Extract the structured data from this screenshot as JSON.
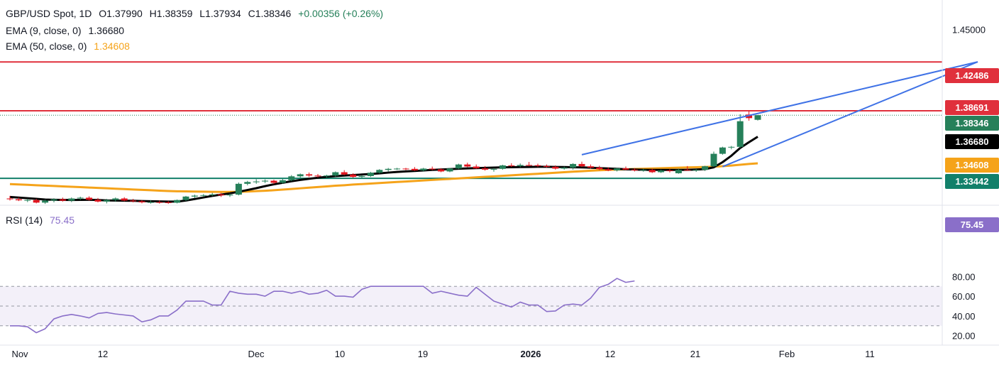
{
  "header": {
    "symbol": "GBP/USD Spot, 1D",
    "open": "O1.37990",
    "high": "H1.38359",
    "low": "L1.37934",
    "close": "C1.38346",
    "change": "+0.00356 (+0.26%)",
    "ema9_label": "EMA (9, close, 0)",
    "ema9_value": "1.36680",
    "ema50_label": "EMA (50, close, 0)",
    "ema50_value": "1.34608",
    "rsi_label": "RSI (14)",
    "rsi_value": "75.45"
  },
  "colors": {
    "up": "#26805a",
    "down": "#e0141e",
    "ema9": "#000000",
    "ema50": "#f5a31a",
    "rsi": "#8a6fc9",
    "resistance": "#e0303c",
    "support": "#12806a",
    "channel": "#3f72e6"
  },
  "price_tags": {
    "r1": "1.42486",
    "r2": "1.38691",
    "last": "1.38346",
    "ema9": "1.36680",
    "ema50": "1.34608",
    "support": "1.33442",
    "rsi": "75.45"
  },
  "chart_data": [
    {
      "type": "candlestick",
      "title": "GBP/USD Spot, 1D",
      "x_ticks": [
        "Nov",
        "12",
        "Dec",
        "10",
        "19",
        "2026",
        "12",
        "21",
        "Feb",
        "11"
      ],
      "y_ticks": [
        1.45
      ],
      "y_range": [
        1.31,
        1.455
      ],
      "horizontal_levels": [
        {
          "value": 1.42486,
          "label": "1.42486",
          "role": "resistance"
        },
        {
          "value": 1.38691,
          "label": "1.38691",
          "role": "resistance"
        },
        {
          "value": 1.33442,
          "label": "1.33442",
          "role": "support"
        }
      ],
      "last_close": 1.38346,
      "candles": [
        [
          1.3188,
          1.3208,
          1.3172,
          1.3182
        ],
        [
          1.3182,
          1.3195,
          1.3168,
          1.3174
        ],
        [
          1.3174,
          1.3186,
          1.316,
          1.3176
        ],
        [
          1.3176,
          1.3185,
          1.315,
          1.3156
        ],
        [
          1.3156,
          1.318,
          1.3146,
          1.3172
        ],
        [
          1.3172,
          1.319,
          1.3158,
          1.3182
        ],
        [
          1.3182,
          1.3195,
          1.3164,
          1.3171
        ],
        [
          1.3171,
          1.3196,
          1.316,
          1.3188
        ],
        [
          1.3188,
          1.3202,
          1.3176,
          1.3194
        ],
        [
          1.3194,
          1.3205,
          1.3172,
          1.3178
        ],
        [
          1.3178,
          1.3192,
          1.3158,
          1.3164
        ],
        [
          1.3164,
          1.3185,
          1.315,
          1.3176
        ],
        [
          1.3176,
          1.3196,
          1.3162,
          1.3188
        ],
        [
          1.3188,
          1.3198,
          1.3166,
          1.3172
        ],
        [
          1.3172,
          1.3185,
          1.3158,
          1.3166
        ],
        [
          1.3166,
          1.3175,
          1.315,
          1.3158
        ],
        [
          1.316,
          1.3175,
          1.3148,
          1.316
        ],
        [
          1.316,
          1.3172,
          1.3148,
          1.3158
        ],
        [
          1.3158,
          1.3168,
          1.3146,
          1.3155
        ],
        [
          1.3155,
          1.318,
          1.315,
          1.3176
        ],
        [
          1.3176,
          1.3208,
          1.3168,
          1.3203
        ],
        [
          1.3203,
          1.3218,
          1.3192,
          1.321
        ],
        [
          1.321,
          1.3222,
          1.32,
          1.3214
        ],
        [
          1.3214,
          1.3232,
          1.3206,
          1.322
        ],
        [
          1.322,
          1.3232,
          1.32,
          1.3212
        ],
        [
          1.3212,
          1.3226,
          1.32,
          1.3218
        ],
        [
          1.3218,
          1.3312,
          1.3212,
          1.3302
        ],
        [
          1.3302,
          1.3325,
          1.329,
          1.3316
        ],
        [
          1.3316,
          1.3338,
          1.3302,
          1.332
        ],
        [
          1.332,
          1.3336,
          1.3308,
          1.3326
        ],
        [
          1.3326,
          1.3334,
          1.33,
          1.331
        ],
        [
          1.331,
          1.334,
          1.3302,
          1.333
        ],
        [
          1.333,
          1.337,
          1.3322,
          1.336
        ],
        [
          1.336,
          1.3382,
          1.335,
          1.3376
        ],
        [
          1.3376,
          1.339,
          1.3355,
          1.3366
        ],
        [
          1.3366,
          1.3378,
          1.335,
          1.336
        ],
        [
          1.336,
          1.3372,
          1.335,
          1.3366
        ],
        [
          1.3366,
          1.3398,
          1.3358,
          1.3392
        ],
        [
          1.3392,
          1.3408,
          1.3368,
          1.3374
        ],
        [
          1.3374,
          1.3384,
          1.3348,
          1.3356
        ],
        [
          1.3356,
          1.3368,
          1.3346,
          1.3362
        ],
        [
          1.3362,
          1.3395,
          1.3355,
          1.3388
        ],
        [
          1.3388,
          1.3416,
          1.3382,
          1.341
        ],
        [
          1.341,
          1.3425,
          1.3398,
          1.3418
        ],
        [
          1.3418,
          1.3426,
          1.341,
          1.342
        ],
        [
          1.342,
          1.3426,
          1.3408,
          1.3418
        ],
        [
          1.3418,
          1.3432,
          1.3402,
          1.3406
        ],
        [
          1.3406,
          1.3426,
          1.3396,
          1.342
        ],
        [
          1.342,
          1.3436,
          1.3408,
          1.3414
        ],
        [
          1.3414,
          1.3424,
          1.3392,
          1.3398
        ],
        [
          1.3398,
          1.3425,
          1.3392,
          1.3421
        ],
        [
          1.3421,
          1.3458,
          1.3416,
          1.3452
        ],
        [
          1.3452,
          1.3466,
          1.343,
          1.3436
        ],
        [
          1.3436,
          1.3452,
          1.3418,
          1.3422
        ],
        [
          1.3422,
          1.344,
          1.3404,
          1.3412
        ],
        [
          1.3412,
          1.3425,
          1.3396,
          1.3418
        ],
        [
          1.3418,
          1.345,
          1.3412,
          1.3445
        ],
        [
          1.3445,
          1.3462,
          1.3432,
          1.344
        ],
        [
          1.344,
          1.346,
          1.343,
          1.3448
        ],
        [
          1.3448,
          1.3472,
          1.3438,
          1.3446
        ],
        [
          1.3446,
          1.3458,
          1.3432,
          1.344
        ],
        [
          1.344,
          1.3452,
          1.3428,
          1.3434
        ],
        [
          1.3434,
          1.3445,
          1.3412,
          1.342
        ],
        [
          1.342,
          1.3436,
          1.3412,
          1.3428
        ],
        [
          1.3428,
          1.3462,
          1.3412,
          1.3456
        ],
        [
          1.3456,
          1.3474,
          1.3432,
          1.3438
        ],
        [
          1.3438,
          1.3452,
          1.342,
          1.3428
        ],
        [
          1.3428,
          1.3442,
          1.3408,
          1.3416
        ],
        [
          1.3416,
          1.343,
          1.34,
          1.3406
        ],
        [
          1.3406,
          1.3426,
          1.3398,
          1.3422
        ],
        [
          1.3422,
          1.3436,
          1.3408,
          1.3412
        ],
        [
          1.3412,
          1.3424,
          1.3398,
          1.3406
        ],
        [
          1.3406,
          1.3418,
          1.3396,
          1.341
        ],
        [
          1.341,
          1.342,
          1.3386,
          1.3392
        ],
        [
          1.3392,
          1.3412,
          1.3386,
          1.3406
        ],
        [
          1.3406,
          1.3416,
          1.339,
          1.34
        ],
        [
          1.3384,
          1.342,
          1.338,
          1.341
        ],
        [
          1.341,
          1.344,
          1.3404,
          1.3408
        ],
        [
          1.3408,
          1.3416,
          1.3395,
          1.341
        ],
        [
          1.341,
          1.3442,
          1.3402,
          1.3438
        ],
        [
          1.3438,
          1.3552,
          1.3432,
          1.3535
        ],
        [
          1.3535,
          1.359,
          1.3528,
          1.3584
        ],
        [
          1.3584,
          1.3596,
          1.357,
          1.3589
        ],
        [
          1.3589,
          1.3842,
          1.358,
          1.3788
        ],
        [
          1.384,
          1.3868,
          1.3792,
          1.3812
        ],
        [
          1.3799,
          1.3836,
          1.3793,
          1.3835
        ]
      ],
      "ema9": [
        1.32,
        1.3195,
        1.319,
        1.3185,
        1.318,
        1.3178,
        1.3177,
        1.3176,
        1.3177,
        1.3178,
        1.3176,
        1.3173,
        1.3172,
        1.3171,
        1.317,
        1.3168,
        1.3167,
        1.3165,
        1.3164,
        1.3164,
        1.3172,
        1.3184,
        1.3196,
        1.3208,
        1.3218,
        1.3228,
        1.324,
        1.3254,
        1.3268,
        1.3284,
        1.3298,
        1.331,
        1.3322,
        1.3332,
        1.3341,
        1.3349,
        1.3356,
        1.3362,
        1.3366,
        1.337,
        1.3374,
        1.3378,
        1.3383,
        1.3389,
        1.3394,
        1.3398,
        1.3402,
        1.3406,
        1.341,
        1.3413,
        1.3416,
        1.3419,
        1.3422,
        1.3424,
        1.3426,
        1.3428,
        1.343,
        1.3431,
        1.3432,
        1.3433,
        1.3434,
        1.3434,
        1.3433,
        1.3432,
        1.3431,
        1.3429,
        1.3427,
        1.3424,
        1.3421,
        1.3418,
        1.3415,
        1.3413,
        1.3411,
        1.341,
        1.341,
        1.341,
        1.341,
        1.3411,
        1.3413,
        1.3416,
        1.343,
        1.347,
        1.352,
        1.358,
        1.3625,
        1.3668
      ],
      "ema50": [
        1.33,
        1.3297,
        1.3294,
        1.3291,
        1.3288,
        1.3285,
        1.3282,
        1.3279,
        1.3276,
        1.3273,
        1.327,
        1.3267,
        1.3264,
        1.3261,
        1.3258,
        1.3255,
        1.3252,
        1.3249,
        1.3246,
        1.3244,
        1.3243,
        1.3242,
        1.3241,
        1.324,
        1.3239,
        1.3239,
        1.324,
        1.3242,
        1.3245,
        1.3248,
        1.3252,
        1.3257,
        1.3262,
        1.3267,
        1.3272,
        1.3277,
        1.3282,
        1.3287,
        1.3291,
        1.3296,
        1.33,
        1.3304,
        1.3308,
        1.3312,
        1.3316,
        1.332,
        1.3324,
        1.3328,
        1.3332,
        1.3336,
        1.334,
        1.3344,
        1.3348,
        1.3352,
        1.3356,
        1.336,
        1.3364,
        1.3368,
        1.3372,
        1.3376,
        1.338,
        1.3384,
        1.3388,
        1.3392,
        1.3396,
        1.34,
        1.3404,
        1.3407,
        1.341,
        1.3413,
        1.3415,
        1.3417,
        1.3419,
        1.3421,
        1.3423,
        1.3425,
        1.3427,
        1.3429,
        1.3431,
        1.3433,
        1.3435,
        1.3439,
        1.3444,
        1.345,
        1.3456,
        1.3461
      ],
      "trend_lines": [
        {
          "from": [
            65,
            1.3528
          ],
          "to": [
            110,
            1.4249
          ]
        },
        {
          "from": [
            81,
            1.3435
          ],
          "to": [
            110,
            1.4249
          ]
        }
      ]
    },
    {
      "type": "line",
      "title": "RSI (14)",
      "y_ticks": [
        20,
        40,
        60,
        80
      ],
      "y_range": [
        18,
        83
      ],
      "reference_levels": [
        30,
        50,
        70
      ],
      "overbought_band": [
        30,
        70
      ],
      "values": [
        30,
        30,
        29,
        23,
        27,
        37,
        40,
        41.5,
        40,
        38,
        42.5,
        43.5,
        42,
        41,
        40,
        34,
        36,
        40,
        40,
        46,
        55,
        55,
        55,
        51,
        51,
        65,
        63,
        62,
        62,
        60,
        65,
        65,
        63,
        65,
        62,
        63,
        66,
        60,
        60,
        59,
        67,
        70,
        70,
        70,
        70,
        70,
        70,
        70,
        63,
        65,
        63,
        61,
        60,
        69,
        62,
        55,
        52,
        49,
        54,
        51,
        51,
        44.5,
        45,
        51,
        52,
        51,
        58,
        69,
        72,
        78,
        74,
        75.45
      ]
    }
  ]
}
